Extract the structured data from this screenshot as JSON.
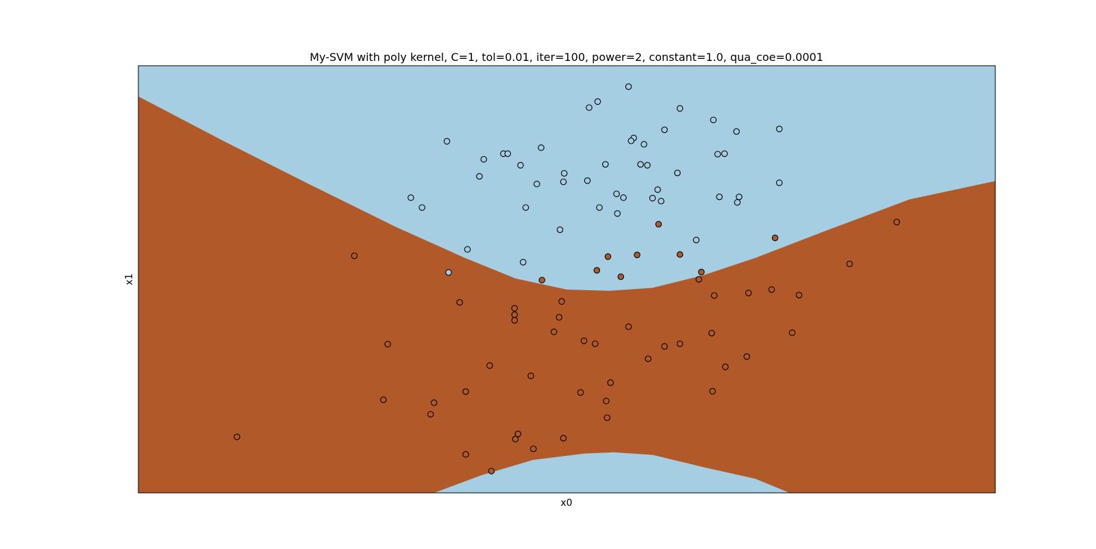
{
  "chart_data": {
    "type": "scatter",
    "title": "My-SVM with poly kernel, C=1, tol=0.01, iter=100, power=2, constant=1.0, qua_coe=0.0001",
    "xlabel": "x0",
    "ylabel": "x1",
    "xlim": [
      0,
      100
    ],
    "ylim": [
      0,
      100
    ],
    "show_ticks": false,
    "grid": false,
    "colors": {
      "class_0": "#a6cee3",
      "class_1": "#b15928",
      "edge": "#000000"
    },
    "decision_regions": {
      "class_1_band": {
        "upper_boundary": [
          [
            0,
            92.8
          ],
          [
            10,
            82.3
          ],
          [
            20,
            72.2
          ],
          [
            30,
            62.3
          ],
          [
            38,
            55.1
          ],
          [
            44,
            50.2
          ],
          [
            50,
            47.6
          ],
          [
            55,
            47.3
          ],
          [
            60,
            48.0
          ],
          [
            66,
            51.0
          ],
          [
            72,
            55.0
          ],
          [
            80,
            61.2
          ],
          [
            90,
            68.7
          ],
          [
            100,
            73.0
          ]
        ],
        "lower_boundary": [
          [
            34.5,
            0
          ],
          [
            40,
            4.1
          ],
          [
            46,
            7.7
          ],
          [
            52,
            9.2
          ],
          [
            55.5,
            9.5
          ],
          [
            60,
            8.9
          ],
          [
            66,
            6.0
          ],
          [
            72,
            3.3
          ],
          [
            76,
            0
          ]
        ]
      }
    },
    "series": [
      {
        "class": 0,
        "points": [
          [
            57.2,
            95.1
          ],
          [
            53.6,
            91.6
          ],
          [
            52.6,
            90.2
          ],
          [
            63.2,
            90.0
          ],
          [
            67.1,
            87.3
          ],
          [
            61.4,
            85.0
          ],
          [
            74.8,
            85.2
          ],
          [
            69.8,
            84.6
          ],
          [
            57.8,
            83.1
          ],
          [
            57.5,
            82.4
          ],
          [
            59.0,
            81.6
          ],
          [
            36.0,
            82.3
          ],
          [
            47.0,
            80.8
          ],
          [
            42.6,
            79.4
          ],
          [
            43.1,
            79.4
          ],
          [
            40.3,
            78.1
          ],
          [
            67.6,
            79.3
          ],
          [
            68.4,
            79.4
          ],
          [
            44.6,
            76.7
          ],
          [
            54.5,
            76.9
          ],
          [
            58.6,
            76.9
          ],
          [
            59.4,
            76.7
          ],
          [
            62.9,
            74.9
          ],
          [
            49.7,
            74.8
          ],
          [
            39.8,
            74.1
          ],
          [
            49.6,
            72.8
          ],
          [
            46.5,
            72.3
          ],
          [
            52.4,
            73.1
          ],
          [
            74.8,
            72.6
          ],
          [
            60.6,
            71.0
          ],
          [
            55.8,
            70.0
          ],
          [
            31.8,
            69.1
          ],
          [
            56.6,
            69.1
          ],
          [
            60.0,
            69.0
          ],
          [
            67.8,
            69.3
          ],
          [
            70.1,
            69.3
          ],
          [
            61.0,
            68.3
          ],
          [
            69.9,
            68.0
          ],
          [
            33.1,
            66.8
          ],
          [
            45.2,
            66.8
          ],
          [
            53.8,
            66.8
          ],
          [
            55.9,
            65.4
          ],
          [
            49.2,
            61.6
          ],
          [
            65.1,
            59.2
          ],
          [
            38.4,
            57.0
          ],
          [
            44.9,
            54.0
          ],
          [
            36.2,
            51.6
          ]
        ]
      },
      {
        "class": 1,
        "points": [
          [
            88.5,
            63.4
          ],
          [
            60.7,
            62.9
          ],
          [
            74.3,
            59.7
          ],
          [
            58.2,
            55.7
          ],
          [
            54.8,
            55.3
          ],
          [
            63.2,
            55.8
          ],
          [
            25.2,
            55.5
          ],
          [
            83.0,
            53.6
          ],
          [
            53.5,
            52.1
          ],
          [
            65.7,
            51.7
          ],
          [
            56.3,
            50.6
          ],
          [
            65.4,
            50.0
          ],
          [
            47.1,
            49.8
          ],
          [
            73.9,
            47.6
          ],
          [
            71.2,
            46.8
          ],
          [
            67.2,
            46.2
          ],
          [
            77.1,
            46.3
          ],
          [
            49.4,
            44.8
          ],
          [
            37.5,
            44.6
          ],
          [
            43.9,
            43.2
          ],
          [
            49.1,
            41.1
          ],
          [
            43.9,
            41.7
          ],
          [
            43.9,
            40.4
          ],
          [
            57.2,
            38.9
          ],
          [
            48.5,
            37.7
          ],
          [
            66.9,
            37.4
          ],
          [
            76.3,
            37.5
          ],
          [
            52.0,
            35.6
          ],
          [
            53.3,
            34.9
          ],
          [
            29.1,
            34.8
          ],
          [
            63.2,
            34.9
          ],
          [
            61.4,
            34.3
          ],
          [
            59.5,
            31.4
          ],
          [
            68.5,
            29.5
          ],
          [
            41.0,
            29.8
          ],
          [
            71.0,
            31.9
          ],
          [
            45.8,
            27.4
          ],
          [
            55.1,
            25.8
          ],
          [
            67.0,
            23.8
          ],
          [
            38.2,
            23.7
          ],
          [
            51.6,
            23.5
          ],
          [
            28.6,
            21.8
          ],
          [
            34.5,
            21.1
          ],
          [
            54.6,
            21.5
          ],
          [
            34.1,
            18.4
          ],
          [
            54.7,
            17.6
          ],
          [
            11.5,
            13.1
          ],
          [
            44.3,
            13.8
          ],
          [
            44.0,
            12.6
          ],
          [
            49.6,
            12.8
          ],
          [
            46.1,
            10.3
          ],
          [
            38.2,
            9.0
          ],
          [
            41.2,
            5.1
          ]
        ]
      }
    ]
  }
}
